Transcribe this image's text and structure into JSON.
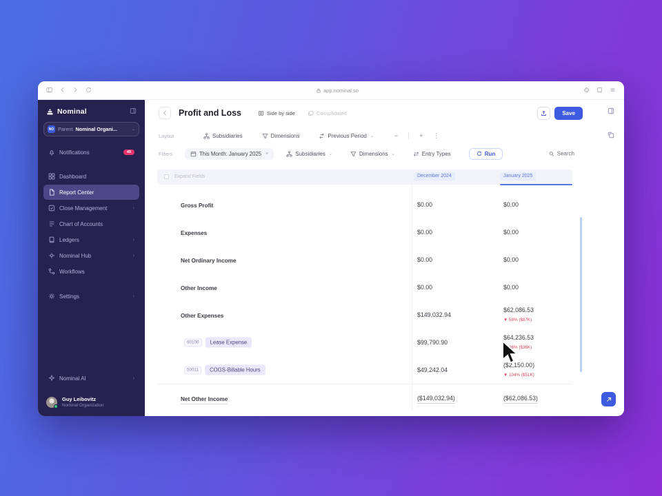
{
  "browser": {
    "url": "app.nominal.so"
  },
  "sidebar": {
    "logo_label": "Nominal",
    "org": {
      "badge": "NO",
      "label": "Parent",
      "value": "Nominal Organi..."
    },
    "notifications": {
      "label": "Notifications",
      "badge": "49"
    },
    "items": [
      {
        "label": "Dashboard",
        "icon": "dashboard-icon",
        "active": false,
        "chevron": false
      },
      {
        "label": "Report Center",
        "icon": "report-center-icon",
        "active": true,
        "chevron": false
      },
      {
        "label": "Close Management",
        "icon": "close-management-icon",
        "active": false,
        "chevron": true
      },
      {
        "label": "Chart of Accounts",
        "icon": "chart-of-accounts-icon",
        "active": false,
        "chevron": false
      },
      {
        "label": "Ledgers",
        "icon": "ledgers-icon",
        "active": false,
        "chevron": true
      },
      {
        "label": "Nominal Hub",
        "icon": "nominal-hub-icon",
        "active": false,
        "chevron": true
      },
      {
        "label": "Workflows",
        "icon": "workflows-icon",
        "active": false,
        "chevron": false
      },
      {
        "label": "Settings",
        "icon": "settings-icon",
        "active": false,
        "chevron": true,
        "group": "bottom"
      }
    ],
    "ai_label": "Nominal AI",
    "user": {
      "name": "Guy Leibovitz",
      "org": "Nominal Organization"
    }
  },
  "header": {
    "title": "Profit and Loss",
    "side_by_side": "Side by side",
    "consolidated": "Consolidated",
    "save_label": "Save"
  },
  "layout_bar": {
    "label": "Layout",
    "subsidiaries": "Subsidiaries",
    "dimensions": "Dimensions",
    "previous_period": "Previous Period"
  },
  "filters_bar": {
    "label": "Filters",
    "period": "This Month:  January 2025",
    "subsidiaries": "Subsidiaries",
    "dimensions": "Dimensions",
    "entry_types": "Entry Types",
    "run_label": "Run",
    "search_label": "Search"
  },
  "table": {
    "first_col_header": "Expand Fields",
    "columns": [
      "December 2024",
      "January 2025"
    ],
    "rows": [
      {
        "label": "Gross Profit",
        "dec": "$0.00",
        "jan": "$0.00"
      },
      {
        "label": "Expenses",
        "dec": "$0.00",
        "jan": "$0.00"
      },
      {
        "label": "Net Ordinary Income",
        "dec": "$0.00",
        "jan": "$0.00"
      },
      {
        "label": "Other Income",
        "dec": "$0.00",
        "jan": "$0.00"
      },
      {
        "label": "Other Expenses",
        "dec": "$149,032.94",
        "jan": "$62,086.53",
        "change": "▼ 58%  ($87K)"
      },
      {
        "code": "60100",
        "label": "Lease Expense",
        "dec": "$99,790.90",
        "jan": "$64,236.53",
        "change": "▼ 36%  ($36K)",
        "sub": true
      },
      {
        "code": "50011",
        "label": "COGS-Billable Hours",
        "dec": "$49,242.04",
        "jan": "($2,150.00)",
        "change": "▼ 104%  ($51K)",
        "sub": true
      },
      {
        "label": "Net Other Income",
        "dec": "($149,032.94)",
        "jan": "($62,086.53)",
        "total": true
      }
    ]
  },
  "icons": {
    "chevron-right": "›",
    "chevron-down": "⌄",
    "close": "×",
    "minus": "−",
    "plus": "+",
    "more": "⋮"
  },
  "colors": {
    "accent": "#3d5be0",
    "sidebar_bg": "#272150",
    "negative_change": "#d9435f",
    "column_highlight": "#5b79d8"
  }
}
